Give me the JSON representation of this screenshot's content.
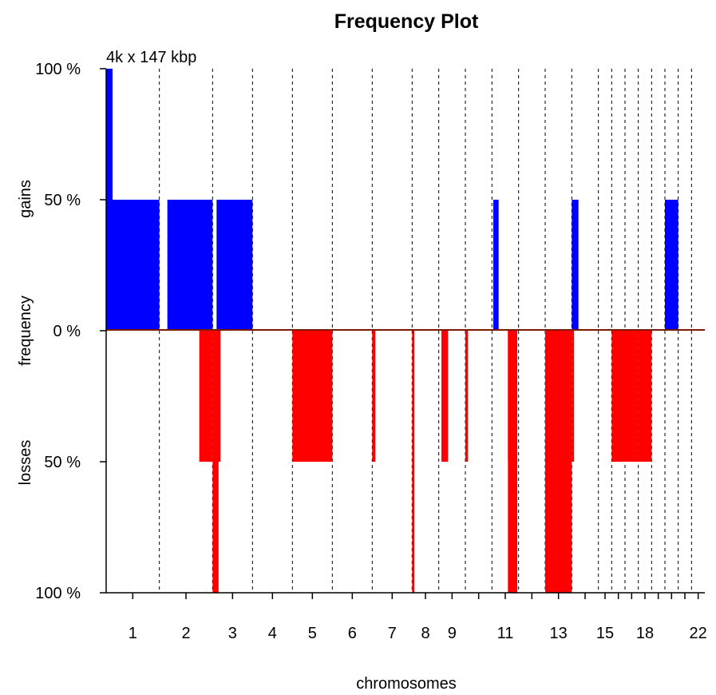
{
  "chart_data": {
    "type": "bar",
    "title": "Frequency Plot",
    "subtitle": "4k x 147 kbp",
    "xlabel": "chromosomes",
    "ylabel": "frequency",
    "ylabel_top": "gains",
    "ylabel_bottom": "losses",
    "ylim": [
      -100,
      100
    ],
    "y_ticks": [
      {
        "value": 100,
        "label": "100 %"
      },
      {
        "value": 50,
        "label": "50 %"
      },
      {
        "value": 0,
        "label": "0 %"
      },
      {
        "value": -50,
        "label": "50 %"
      },
      {
        "value": -100,
        "label": "100 %"
      }
    ],
    "chromosomes": [
      "1",
      "2",
      "3",
      "4",
      "5",
      "6",
      "7",
      "8",
      "9",
      "10",
      "11",
      "12",
      "13",
      "14",
      "15",
      "16",
      "17",
      "18",
      "19",
      "20",
      "21",
      "22"
    ],
    "chromosome_bins": [
      4,
      4,
      3,
      3,
      3,
      3,
      3,
      2,
      2,
      2,
      2,
      2,
      2,
      2,
      1,
      1,
      1,
      1,
      1,
      1,
      1,
      1
    ],
    "chromosome_boundaries": [
      0,
      4,
      8,
      11,
      14,
      17,
      20,
      23,
      25,
      27,
      29,
      31,
      33,
      35,
      37,
      38,
      39,
      40,
      41,
      42,
      43,
      44,
      45
    ],
    "x_tick_labels": [
      {
        "chrom": "1",
        "label": "1"
      },
      {
        "chrom": "2",
        "label": "2"
      },
      {
        "chrom": "3",
        "label": "3"
      },
      {
        "chrom": "4",
        "label": "4"
      },
      {
        "chrom": "5",
        "label": "5"
      },
      {
        "chrom": "6",
        "label": "6"
      },
      {
        "chrom": "7",
        "label": "7"
      },
      {
        "chrom": "8",
        "label": "8"
      },
      {
        "chrom": "9",
        "label": "9"
      },
      {
        "chrom": "11",
        "label": "11"
      },
      {
        "chrom": "13",
        "label": "13"
      },
      {
        "chrom": "15",
        "label": "15"
      },
      {
        "chrom": "18",
        "label": "18"
      },
      {
        "chrom": "22",
        "label": "22"
      }
    ],
    "series": [
      {
        "name": "gains",
        "color": "#0000ff",
        "segments": [
          {
            "chrom": "1",
            "start": 0.0,
            "end": 0.12,
            "value": 100
          },
          {
            "chrom": "1",
            "start": 0.12,
            "end": 1.0,
            "value": 50
          },
          {
            "chrom": "1",
            "start": 1.15,
            "end": 2.0,
            "value": 50
          },
          {
            "chrom": "3",
            "start": 0.1,
            "end": 1.0,
            "value": 50
          },
          {
            "chrom": "11",
            "start": 0.05,
            "end": 0.25,
            "value": 50
          },
          {
            "chrom": "14",
            "start": 0.0,
            "end": 0.25,
            "value": 50
          },
          {
            "chrom": "20",
            "start": 0.0,
            "end": 1.0,
            "value": 50
          }
        ]
      },
      {
        "name": "losses",
        "color": "#ff0000",
        "segments": [
          {
            "chrom": "2",
            "start": 0.75,
            "end": 1.0,
            "value": 50
          },
          {
            "chrom": "3",
            "start": 0.0,
            "end": 0.2,
            "value": 50
          },
          {
            "chrom": "3",
            "start": 0.0,
            "end": 0.15,
            "value": 100
          },
          {
            "chrom": "5",
            "start": 0.0,
            "end": 1.0,
            "value": 50
          },
          {
            "chrom": "7",
            "start": 0.0,
            "end": 0.08,
            "value": 50
          },
          {
            "chrom": "8",
            "start": 0.0,
            "end": 0.08,
            "value": 100
          },
          {
            "chrom": "9",
            "start": 0.1,
            "end": 0.35,
            "value": 50
          },
          {
            "chrom": "10",
            "start": 0.0,
            "end": 0.1,
            "value": 50
          },
          {
            "chrom": "11",
            "start": 0.6,
            "end": 0.9,
            "value": 50
          },
          {
            "chrom": "11",
            "start": 0.6,
            "end": 0.95,
            "value": 100
          },
          {
            "chrom": "13",
            "start": 0.0,
            "end": 1.0,
            "value": 100
          },
          {
            "chrom": "14",
            "start": 0.0,
            "end": 0.08,
            "value": 50
          },
          {
            "chrom": "16",
            "start": 0.0,
            "end": 1.0,
            "value": 50
          },
          {
            "chrom": "17",
            "start": 0.0,
            "end": 1.0,
            "value": 50
          },
          {
            "chrom": "18",
            "start": 0.0,
            "end": 1.0,
            "value": 50
          }
        ]
      }
    ],
    "grid": false,
    "legend": "none"
  }
}
